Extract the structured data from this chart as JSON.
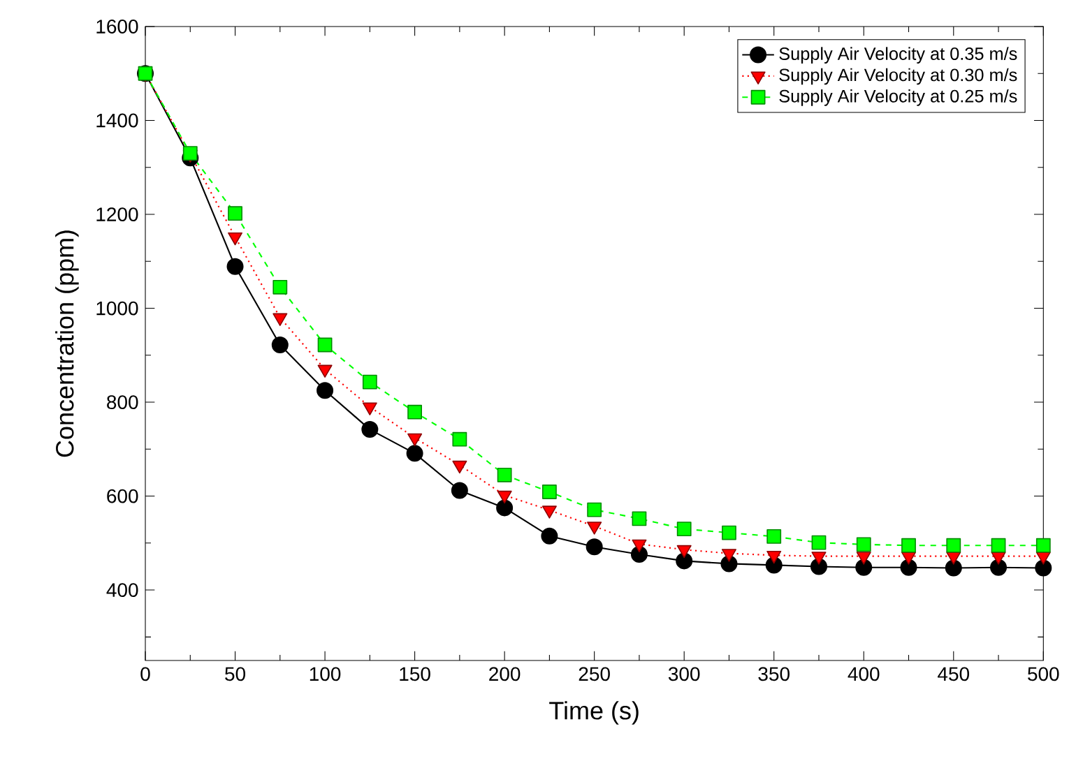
{
  "chart_data": {
    "type": "line",
    "xlabel": "Time (s)",
    "ylabel": "Concentration (ppm)",
    "x": [
      0,
      25,
      50,
      75,
      100,
      125,
      150,
      175,
      200,
      225,
      250,
      275,
      300,
      325,
      350,
      375,
      400,
      425,
      450,
      475,
      500
    ],
    "series": [
      {
        "name": "Supply Air Velocity at 0.35 m/s",
        "color": "#000000",
        "marker": "circle",
        "line_style": "solid",
        "values": [
          1500,
          1320,
          1089,
          922,
          825,
          742,
          691,
          612,
          575,
          515,
          492,
          476,
          462,
          456,
          453,
          450,
          448,
          448,
          447,
          448,
          447
        ]
      },
      {
        "name": "Supply Air Velocity at 0.30 m/s",
        "color": "#ff0000",
        "marker": "triangle",
        "line_style": "dotted",
        "values": [
          1500,
          1328,
          1152,
          980,
          870,
          790,
          724,
          666,
          602,
          570,
          536,
          498,
          486,
          478,
          474,
          472,
          472,
          472,
          472,
          472,
          472
        ]
      },
      {
        "name": "Supply Air Velocity at 0.25 m/s",
        "color": "#00ff00",
        "marker": "square",
        "line_style": "dashed",
        "values": [
          1500,
          1330,
          1202,
          1045,
          922,
          843,
          779,
          721,
          645,
          609,
          571,
          552,
          530,
          522,
          514,
          501,
          497,
          495,
          495,
          495,
          495
        ]
      }
    ],
    "xlim": [
      0,
      500
    ],
    "ylim": [
      250,
      1600
    ],
    "xticks": [
      0,
      {
        "value": 25,
        "label": null
      },
      50,
      {
        "value": 75,
        "label": null
      },
      100,
      {
        "value": 125,
        "label": null
      },
      150,
      {
        "value": 175,
        "label": null
      },
      200,
      {
        "value": 225,
        "label": null
      },
      250,
      {
        "value": 275,
        "label": null
      },
      300,
      {
        "value": 325,
        "label": null
      },
      350,
      {
        "value": 375,
        "label": null
      },
      400,
      {
        "value": 425,
        "label": null
      },
      450,
      {
        "value": 475,
        "label": null
      },
      500
    ],
    "yticks": [
      {
        "value": 300,
        "label": null
      },
      400,
      {
        "value": 500,
        "label": null
      },
      600,
      {
        "value": 700,
        "label": null
      },
      800,
      {
        "value": 900,
        "label": null
      },
      1000,
      {
        "value": 1100,
        "label": null
      },
      1200,
      {
        "value": 1300,
        "label": null
      },
      1400,
      {
        "value": 1500,
        "label": null
      },
      1600
    ],
    "grid": false,
    "legend": "top right"
  }
}
